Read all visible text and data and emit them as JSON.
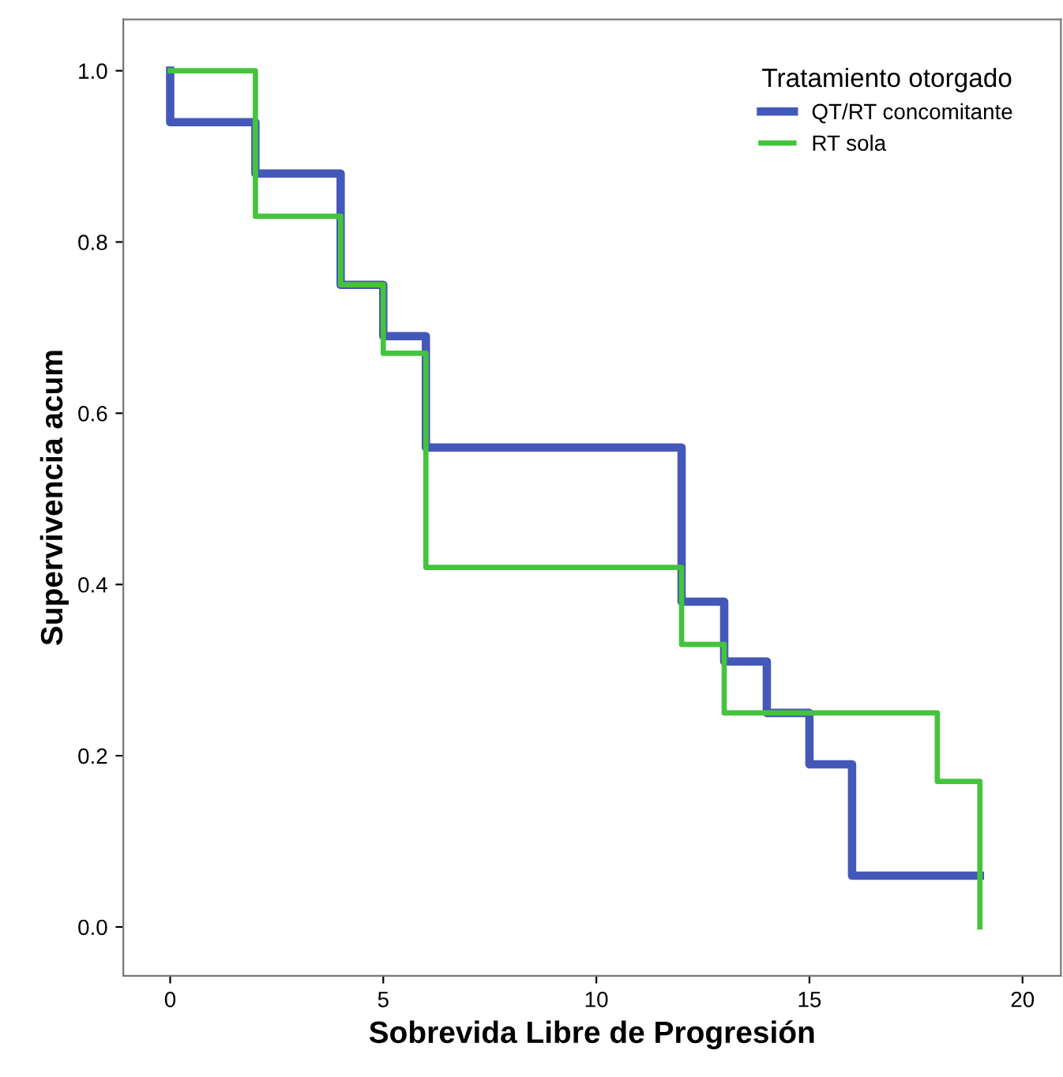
{
  "chart_data": {
    "type": "step",
    "xlabel": "Sobrevida Libre de Progresión",
    "ylabel": "Supervivencia acum",
    "legend_title": "Tratamiento otorgado",
    "legend": "top right",
    "grid": false,
    "xlim": [
      -1.1,
      20.9
    ],
    "xticks": [
      0,
      5,
      10,
      15,
      20
    ],
    "ylim": [
      -0.057,
      1.06
    ],
    "yticks": [
      {
        "value": 0,
        "label": "0.0"
      },
      0.2,
      0.4,
      0.6,
      0.8,
      {
        "value": 1,
        "label": "1.0"
      }
    ],
    "series": [
      {
        "name": "QT/RT concomitante",
        "color": "#4358b8",
        "x": [
          0,
          0,
          2,
          4,
          5,
          6,
          12,
          13,
          14,
          15,
          16,
          19
        ],
        "values": [
          1.0,
          0.94,
          0.88,
          0.75,
          0.69,
          0.56,
          0.38,
          0.31,
          0.25,
          0.19,
          0.06,
          0.06
        ]
      },
      {
        "name": "RT sola",
        "color": "#44c43c",
        "x": [
          0,
          2,
          4,
          5,
          6,
          12,
          13,
          18,
          19
        ],
        "values": [
          1.0,
          0.83,
          0.75,
          0.67,
          0.42,
          0.33,
          0.25,
          0.17,
          0.0
        ]
      }
    ]
  }
}
